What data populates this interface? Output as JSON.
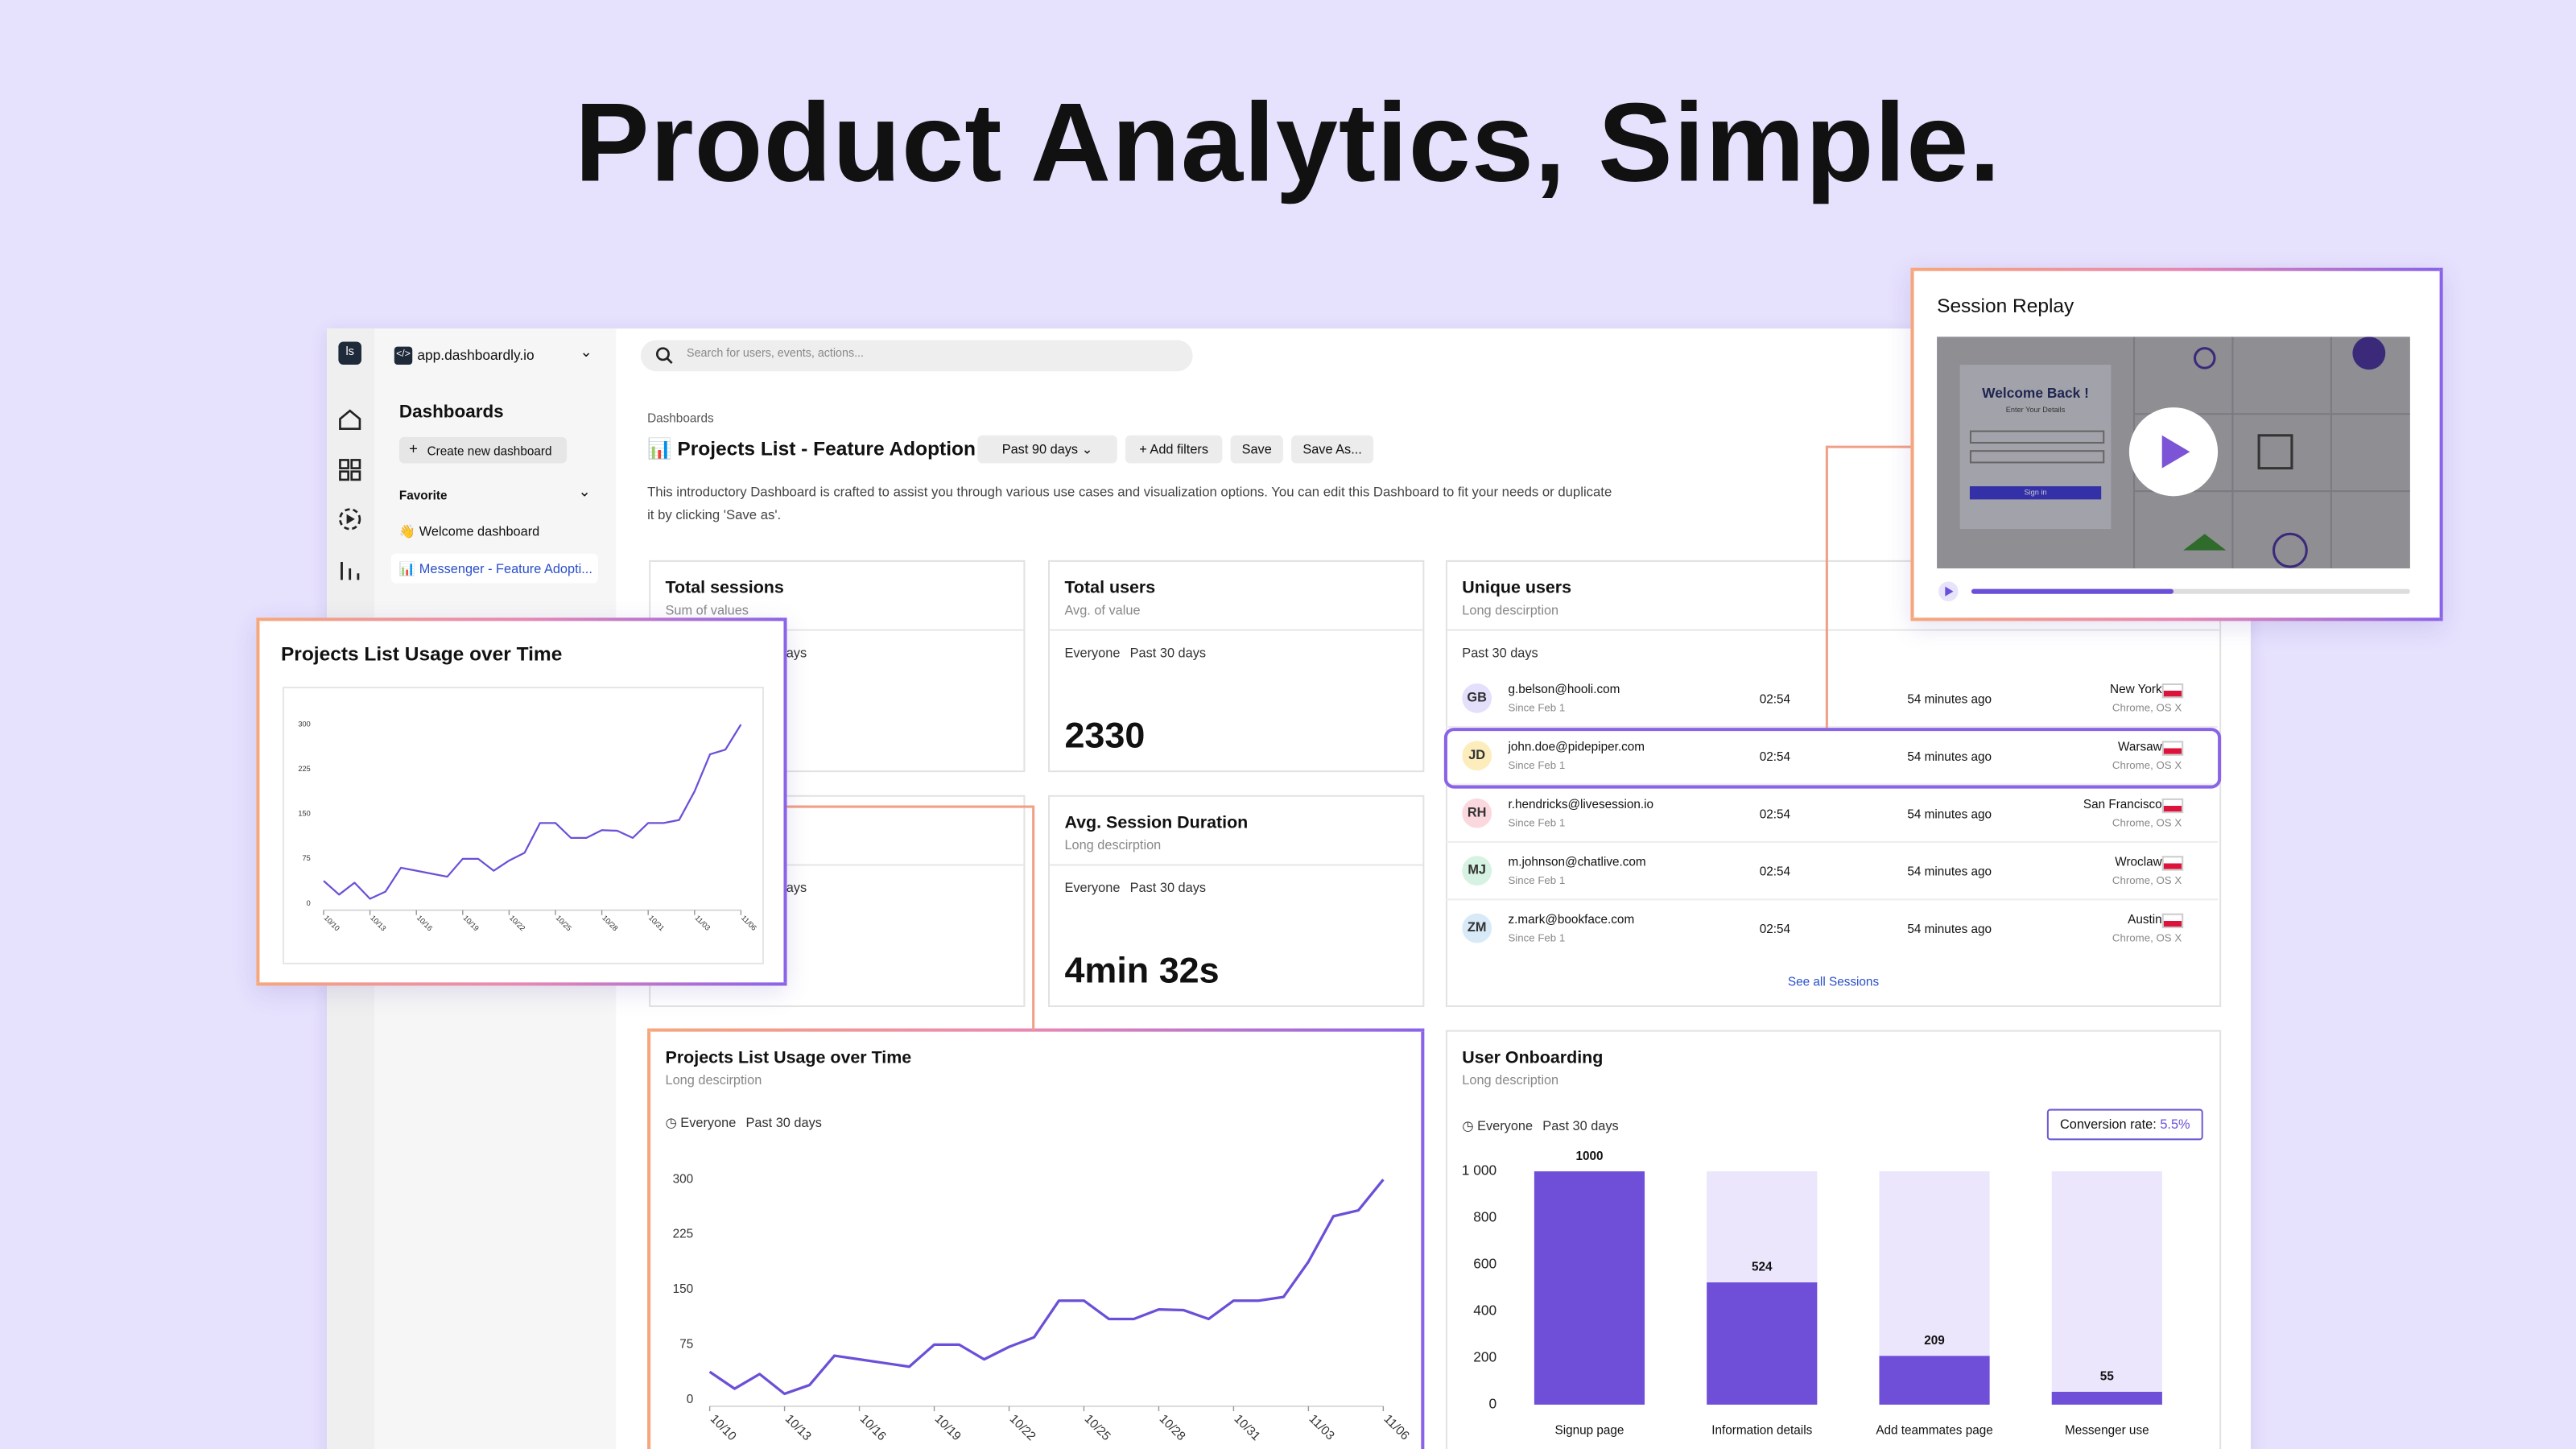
{
  "headline": "Product Analytics, Simple.",
  "sidebar": {
    "app": "app.dashboardly.io",
    "title": "Dashboards",
    "create": "Create new dashboard",
    "favorite": "Favorite",
    "items": [
      "👋 Welcome dashboard",
      "📊 Messenger - Feature Adopti..."
    ]
  },
  "search": "Search for users, events, actions...",
  "breadcrumb": "Dashboards",
  "dashboard_title": "📊 Projects List - Feature Adoption",
  "toolbar": {
    "period": "Past 90 days",
    "filters": "Add filters",
    "save": "Save",
    "save_as": "Save As..."
  },
  "description": "This introductory Dashboard is crafted to assist you through various use cases and visualization options. You can edit this Dashboard to fit your needs or duplicate it by clicking 'Save as'.",
  "filter": {
    "audience": "Everyone",
    "period": "Past 30 days"
  },
  "cards": {
    "total_sessions": {
      "title": "Total sessions",
      "subtitle": "Sum of values"
    },
    "total_users": {
      "title": "Total users",
      "subtitle": "Avg. of value",
      "value": "2330"
    },
    "avg_session": {
      "title": "Avg. Session Duration",
      "subtitle": "Long descirption",
      "value": "4min 32s"
    }
  },
  "unique_users": {
    "title": "Unique users",
    "subtitle": "Long descirption",
    "footer": "See all Sessions",
    "rows": [
      {
        "initials": "GB",
        "avatar_color": "#e4dffb",
        "email": "g.belson@hooli.com",
        "since": "Since Feb 1",
        "duration": "02:54",
        "ago": "54 minutes ago",
        "city": "New York",
        "os": "Chrome, OS X"
      },
      {
        "initials": "JD",
        "avatar_color": "#fdedbd",
        "email": "john.doe@pidepiper.com",
        "since": "Since Feb 1",
        "duration": "02:54",
        "ago": "54 minutes ago",
        "city": "Warsaw",
        "os": "Chrome, OS X"
      },
      {
        "initials": "RH",
        "avatar_color": "#fbd8de",
        "email": "r.hendricks@livesession.io",
        "since": "Since Feb 1",
        "duration": "02:54",
        "ago": "54 minutes ago",
        "city": "San Francisco",
        "os": "Chrome, OS X"
      },
      {
        "initials": "MJ",
        "avatar_color": "#d5f2e2",
        "email": "m.johnson@chatlive.com",
        "since": "Since Feb 1",
        "duration": "02:54",
        "ago": "54 minutes ago",
        "city": "Wroclaw",
        "os": "Chrome, OS X"
      },
      {
        "initials": "ZM",
        "avatar_color": "#d8eaf8",
        "email": "z.mark@bookface.com",
        "since": "Since Feb 1",
        "duration": "02:54",
        "ago": "54 minutes ago",
        "city": "Austin",
        "os": "Chrome, OS X"
      }
    ]
  },
  "session_replay": {
    "title": "Session Replay",
    "welcome": "Welcome Back !",
    "details": "Enter Your Details",
    "sign_in": "Sign in"
  },
  "usage_chart": {
    "subtitle": "Long descirption",
    "chart_data": {
      "type": "line",
      "title": "Projects List Usage over Time",
      "categories": [
        "10/10",
        null,
        null,
        "10/13",
        null,
        null,
        "10/16",
        null,
        null,
        "10/19",
        null,
        null,
        "10/22",
        null,
        null,
        "10/25",
        null,
        null,
        "10/28",
        null,
        null,
        "10/31",
        null,
        null,
        "11/03",
        null,
        null,
        "11/06"
      ],
      "values": [
        38,
        15,
        35,
        8,
        20,
        60,
        55,
        50,
        45,
        75,
        75,
        55,
        72,
        85,
        135,
        135,
        110,
        110,
        123,
        122,
        110,
        135,
        135,
        140,
        188,
        250,
        258,
        300
      ],
      "color": "#6b4fd8",
      "ylim": [
        0,
        300
      ],
      "yticks": [
        0,
        75,
        150,
        225,
        300
      ]
    }
  },
  "onboarding": {
    "subtitle": "Long description",
    "conversion_label": "Conversion rate:",
    "conversion_value": "5.5%",
    "chart_data": {
      "type": "bar",
      "title": "User Onboarding",
      "categories": [
        "Signup page",
        "Information details",
        "Add teammates page",
        "Messenger use"
      ],
      "values": [
        1000,
        524,
        209,
        55
      ],
      "color": "#6f4ed8",
      "background_color": "#ebe6fc",
      "ylim": [
        0,
        1000
      ],
      "yticks": [
        0,
        200,
        400,
        600,
        800,
        {
          "value": 1000,
          "label": "1 000"
        }
      ]
    }
  }
}
